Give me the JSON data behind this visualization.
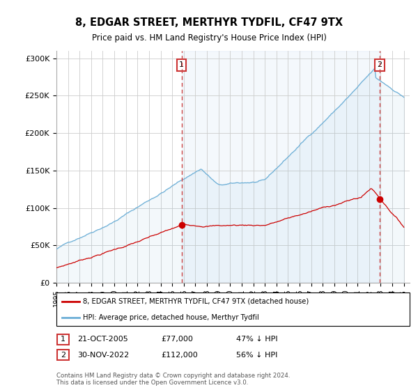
{
  "title": "8, EDGAR STREET, MERTHYR TYDFIL, CF47 9TX",
  "subtitle": "Price paid vs. HM Land Registry's House Price Index (HPI)",
  "ylabel_ticks": [
    "£0",
    "£50K",
    "£100K",
    "£150K",
    "£200K",
    "£250K",
    "£300K"
  ],
  "ytick_values": [
    0,
    50000,
    100000,
    150000,
    200000,
    250000,
    300000
  ],
  "ylim": [
    0,
    310000
  ],
  "sale1_date_num": 2005.8,
  "sale1_label": "1",
  "sale1_price": 77000,
  "sale2_date_num": 2022.9,
  "sale2_label": "2",
  "sale2_price": 112000,
  "hpi_color": "#6baed6",
  "hpi_fill": "#ddeeff",
  "price_color": "#cc0000",
  "dashed_color": "#cc4444",
  "marker_color": "#cc0000",
  "legend_text1": "8, EDGAR STREET, MERTHYR TYDFIL, CF47 9TX (detached house)",
  "legend_text2": "HPI: Average price, detached house, Merthyr Tydfil",
  "table_row1": [
    "1",
    "21-OCT-2005",
    "£77,000",
    "47% ↓ HPI"
  ],
  "table_row2": [
    "2",
    "30-NOV-2022",
    "£112,000",
    "56% ↓ HPI"
  ],
  "footer": "Contains HM Land Registry data © Crown copyright and database right 2024.\nThis data is licensed under the Open Government Licence v3.0.",
  "xmin": 1995.0,
  "xmax": 2025.5
}
